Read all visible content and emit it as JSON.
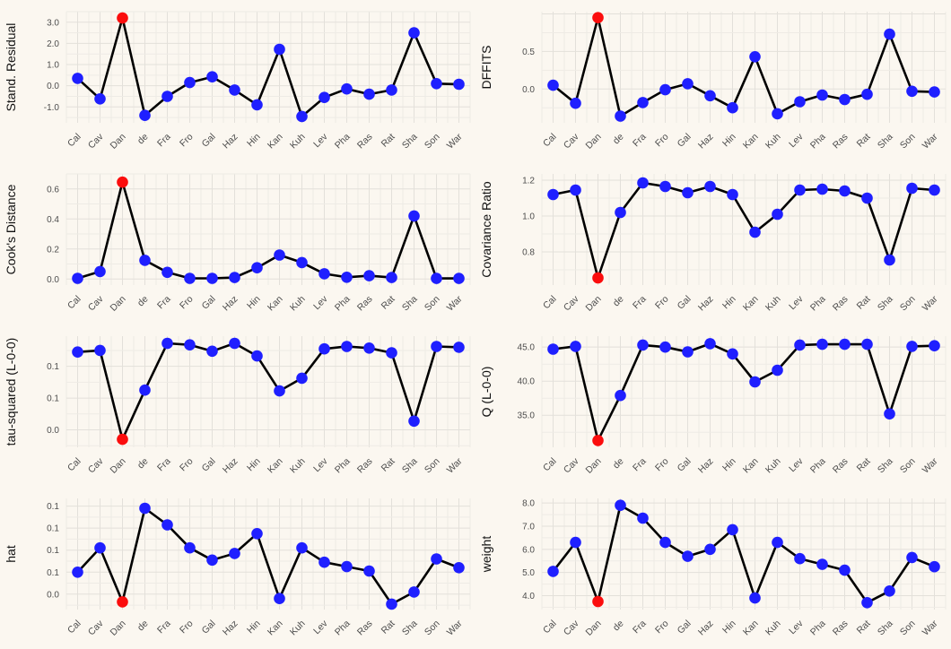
{
  "page": {
    "background_color": "#fbf7f0"
  },
  "colors": {
    "point": "#1f1fff",
    "highlight_point": "#fb0d0d",
    "line": "#000000",
    "grid_major": "#e3e0da",
    "grid_minor": "#eeebe5",
    "tick_text": "#4d4d4d",
    "axis_label_text": "#111111"
  },
  "chart_data": {
    "type": "line",
    "layout": "4x2 grid of influence-diagnostic line plots, shared x categories, grid on, no legend",
    "categories": [
      "Cal",
      "Cav",
      "Dan",
      "de",
      "Fra",
      "Fro",
      "Gal",
      "Haz",
      "Hin",
      "Kan",
      "Kuh",
      "Lev",
      "Pha",
      "Ras",
      "Rat",
      "Sha",
      "Son",
      "War"
    ],
    "highlight_index": 2,
    "highlight_category": "Dan",
    "charts": [
      {
        "id": "stand-residual",
        "ylabel": "Stand. Residual",
        "ylim": [
          -1.75,
          3.5
        ],
        "yticks": [
          {
            "label": "3.0",
            "v": 3.0
          },
          {
            "label": "2.0",
            "v": 2.0
          },
          {
            "label": "1.0",
            "v": 1.0
          },
          {
            "label": "0.0",
            "v": 0.0
          },
          {
            "label": "-1.0",
            "v": -1.0
          }
        ],
        "values": [
          0.35,
          -0.62,
          3.2,
          -1.4,
          -0.5,
          0.15,
          0.42,
          -0.2,
          -0.9,
          1.72,
          -1.45,
          -0.55,
          -0.15,
          -0.4,
          -0.2,
          2.5,
          0.1,
          0.07
        ]
      },
      {
        "id": "dffits",
        "ylabel": "DFFITS",
        "ylim": [
          -0.45,
          1.03
        ],
        "yticks": [
          {
            "label": "0.5",
            "v": 0.5
          },
          {
            "label": "0.0",
            "v": 0.0
          }
        ],
        "values": [
          0.05,
          -0.19,
          0.95,
          -0.36,
          -0.18,
          -0.01,
          0.07,
          -0.09,
          -0.25,
          0.43,
          -0.33,
          -0.17,
          -0.08,
          -0.14,
          -0.07,
          0.73,
          -0.03,
          -0.04
        ]
      },
      {
        "id": "cooks-distance",
        "ylabel": "Cook's Distance",
        "ylim": [
          -0.04,
          0.7
        ],
        "yticks": [
          {
            "label": "0.6",
            "v": 0.6
          },
          {
            "label": "0.4",
            "v": 0.4
          },
          {
            "label": "0.2",
            "v": 0.2
          },
          {
            "label": "0.0",
            "v": 0.0
          }
        ],
        "values": [
          0.005,
          0.05,
          0.645,
          0.125,
          0.045,
          0.005,
          0.005,
          0.01,
          0.075,
          0.16,
          0.11,
          0.035,
          0.012,
          0.022,
          0.01,
          0.42,
          0.004,
          0.004
        ]
      },
      {
        "id": "covariance-ratio",
        "ylabel": "Covariance Ratio",
        "ylim": [
          0.615,
          1.235
        ],
        "yticks": [
          {
            "label": "1.2",
            "v": 1.2
          },
          {
            "label": "1.0",
            "v": 1.0
          },
          {
            "label": "0.8",
            "v": 0.8
          }
        ],
        "values": [
          1.12,
          1.145,
          0.655,
          1.02,
          1.185,
          1.165,
          1.13,
          1.165,
          1.12,
          0.91,
          1.01,
          1.145,
          1.15,
          1.14,
          1.1,
          0.755,
          1.155,
          1.145
        ]
      },
      {
        "id": "tau-squared",
        "ylabel": "tau-squared (L-0-0)",
        "ylim": [
          0.018,
          0.158
        ],
        "yticks": [
          {
            "label": "0.1",
            "v": 0.12
          },
          {
            "label": "0.1",
            "v": 0.08
          },
          {
            "label": "0.0",
            "v": 0.04
          }
        ],
        "values": [
          0.138,
          0.14,
          0.028,
          0.09,
          0.149,
          0.147,
          0.139,
          0.149,
          0.133,
          0.089,
          0.105,
          0.142,
          0.145,
          0.143,
          0.137,
          0.051,
          0.145,
          0.144
        ]
      },
      {
        "id": "q-statistic",
        "ylabel": "Q (L-0-0)",
        "ylim": [
          30.3,
          46.6
        ],
        "yticks": [
          {
            "label": "45.0",
            "v": 45.0
          },
          {
            "label": "40.0",
            "v": 40.0
          },
          {
            "label": "35.0",
            "v": 35.0
          }
        ],
        "values": [
          44.7,
          45.1,
          31.3,
          37.9,
          45.3,
          45.0,
          44.3,
          45.5,
          44.0,
          39.9,
          41.6,
          45.3,
          45.4,
          45.4,
          45.4,
          35.2,
          45.1,
          45.2
        ]
      },
      {
        "id": "hat",
        "ylabel": "hat",
        "ylim": [
          0.026,
          0.127
        ],
        "yticks": [
          {
            "label": "0.1",
            "v": 0.12
          },
          {
            "label": "0.1",
            "v": 0.1
          },
          {
            "label": "0.1",
            "v": 0.08
          },
          {
            "label": "0.1",
            "v": 0.06
          },
          {
            "label": "0.0",
            "v": 0.04
          }
        ],
        "values": [
          0.06,
          0.082,
          0.033,
          0.118,
          0.103,
          0.082,
          0.071,
          0.077,
          0.095,
          0.036,
          0.082,
          0.069,
          0.065,
          0.061,
          0.031,
          0.042,
          0.072,
          0.064
        ]
      },
      {
        "id": "weight",
        "ylabel": "weight",
        "ylim": [
          3.4,
          8.2
        ],
        "yticks": [
          {
            "label": "8.0",
            "v": 8.0
          },
          {
            "label": "7.0",
            "v": 7.0
          },
          {
            "label": "6.0",
            "v": 6.0
          },
          {
            "label": "5.0",
            "v": 5.0
          },
          {
            "label": "4.0",
            "v": 4.0
          }
        ],
        "values": [
          5.05,
          6.3,
          3.75,
          7.9,
          7.35,
          6.3,
          5.7,
          6.0,
          6.85,
          3.9,
          6.3,
          5.6,
          5.35,
          5.1,
          3.7,
          4.2,
          5.65,
          5.25
        ]
      }
    ]
  }
}
